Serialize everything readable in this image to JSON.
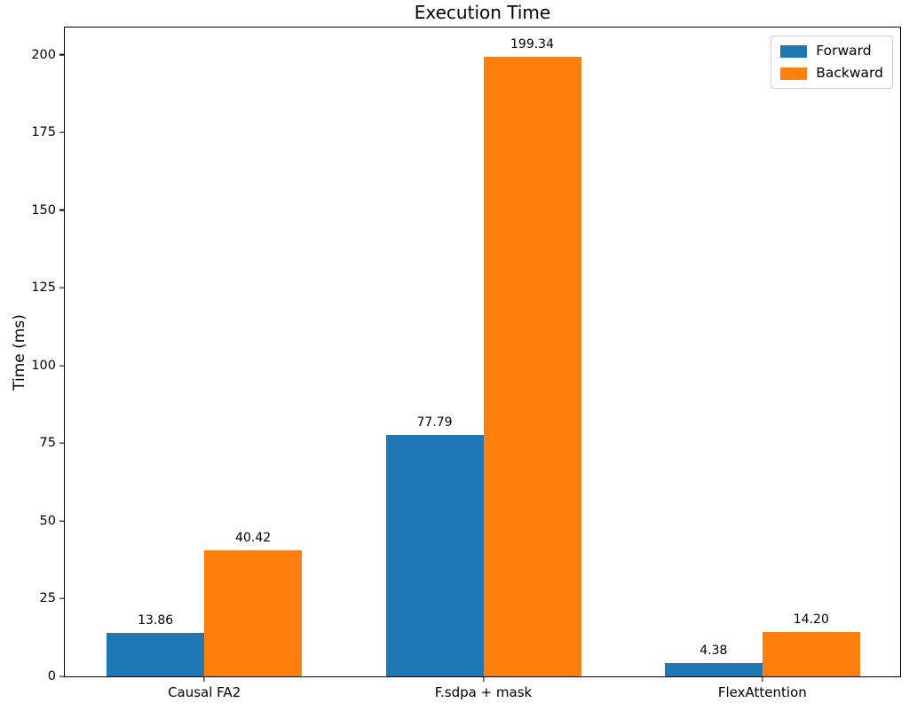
{
  "chart_data": {
    "type": "bar",
    "title": "Execution Time",
    "xlabel": "",
    "ylabel": "Time (ms)",
    "categories": [
      "Causal FA2",
      "F.sdpa + mask",
      "FlexAttention"
    ],
    "series": [
      {
        "name": "Forward",
        "color": "#1f77b4",
        "values": [
          13.86,
          77.79,
          4.38
        ]
      },
      {
        "name": "Backward",
        "color": "#ff7f0e",
        "values": [
          40.42,
          199.34,
          14.2
        ]
      }
    ],
    "bar_value_labels": [
      [
        "13.86",
        "77.79",
        "4.38"
      ],
      [
        "40.42",
        "199.34",
        "14.20"
      ]
    ],
    "yticks": [
      0,
      25,
      50,
      75,
      100,
      125,
      150,
      175,
      200
    ],
    "ylim": [
      0,
      209.3
    ],
    "legend_position": "upper right",
    "grid": false,
    "colors": {
      "forward": "#1f77b4",
      "backward": "#ff7f0e",
      "spine": "#000000",
      "legend_border": "#cccccc"
    }
  }
}
